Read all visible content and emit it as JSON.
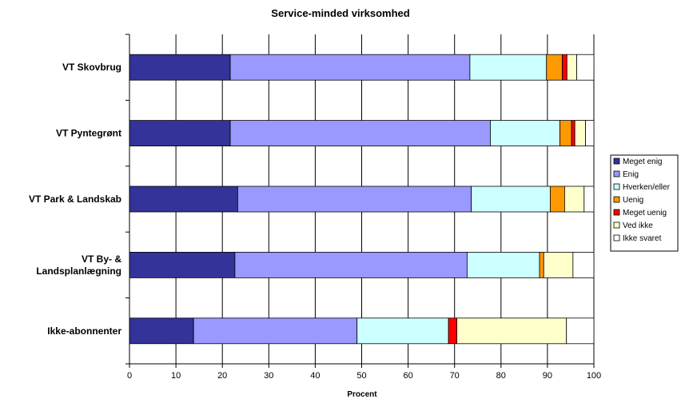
{
  "chart_data": {
    "type": "bar",
    "orientation": "horizontal",
    "stacked": true,
    "title": "Service-minded virksomhed",
    "xlabel": "Procent",
    "ylabel": "",
    "xlim": [
      0,
      100
    ],
    "xticks": [
      "0",
      "10",
      "20",
      "30",
      "40",
      "50",
      "60",
      "70",
      "80",
      "90",
      "100"
    ],
    "grid": true,
    "legend_position": "right",
    "categories": [
      [
        "VT Skovbrug"
      ],
      [
        "VT Pyntegrønt"
      ],
      [
        "VT Park & Landskab"
      ],
      [
        "VT By- &",
        "Landsplanlægning"
      ],
      [
        "Ikke-abonnenter"
      ]
    ],
    "series": [
      {
        "name": "Meget enig",
        "color": "#333399",
        "values": [
          21.7,
          21.7,
          23.3,
          22.7,
          13.8
        ]
      },
      {
        "name": "Enig",
        "color": "#9999ff",
        "values": [
          51.6,
          56.0,
          50.3,
          50.0,
          35.2
        ]
      },
      {
        "name": "Hverken/eller",
        "color": "#ccffff",
        "values": [
          16.5,
          15.0,
          17.0,
          15.6,
          19.7
        ]
      },
      {
        "name": "Uenig",
        "color": "#ff9900",
        "values": [
          3.4,
          2.5,
          3.1,
          0.9,
          0.0
        ]
      },
      {
        "name": "Meget uenig",
        "color": "#ff0000",
        "values": [
          1.0,
          0.7,
          0.0,
          0.0,
          1.8
        ]
      },
      {
        "name": "Ved ikke",
        "color": "#ffffcc",
        "values": [
          2.1,
          2.3,
          4.2,
          6.3,
          23.6
        ]
      },
      {
        "name": "Ikke svaret",
        "color": "#ffffff",
        "values": [
          3.7,
          1.8,
          2.1,
          4.5,
          5.9
        ]
      }
    ]
  }
}
